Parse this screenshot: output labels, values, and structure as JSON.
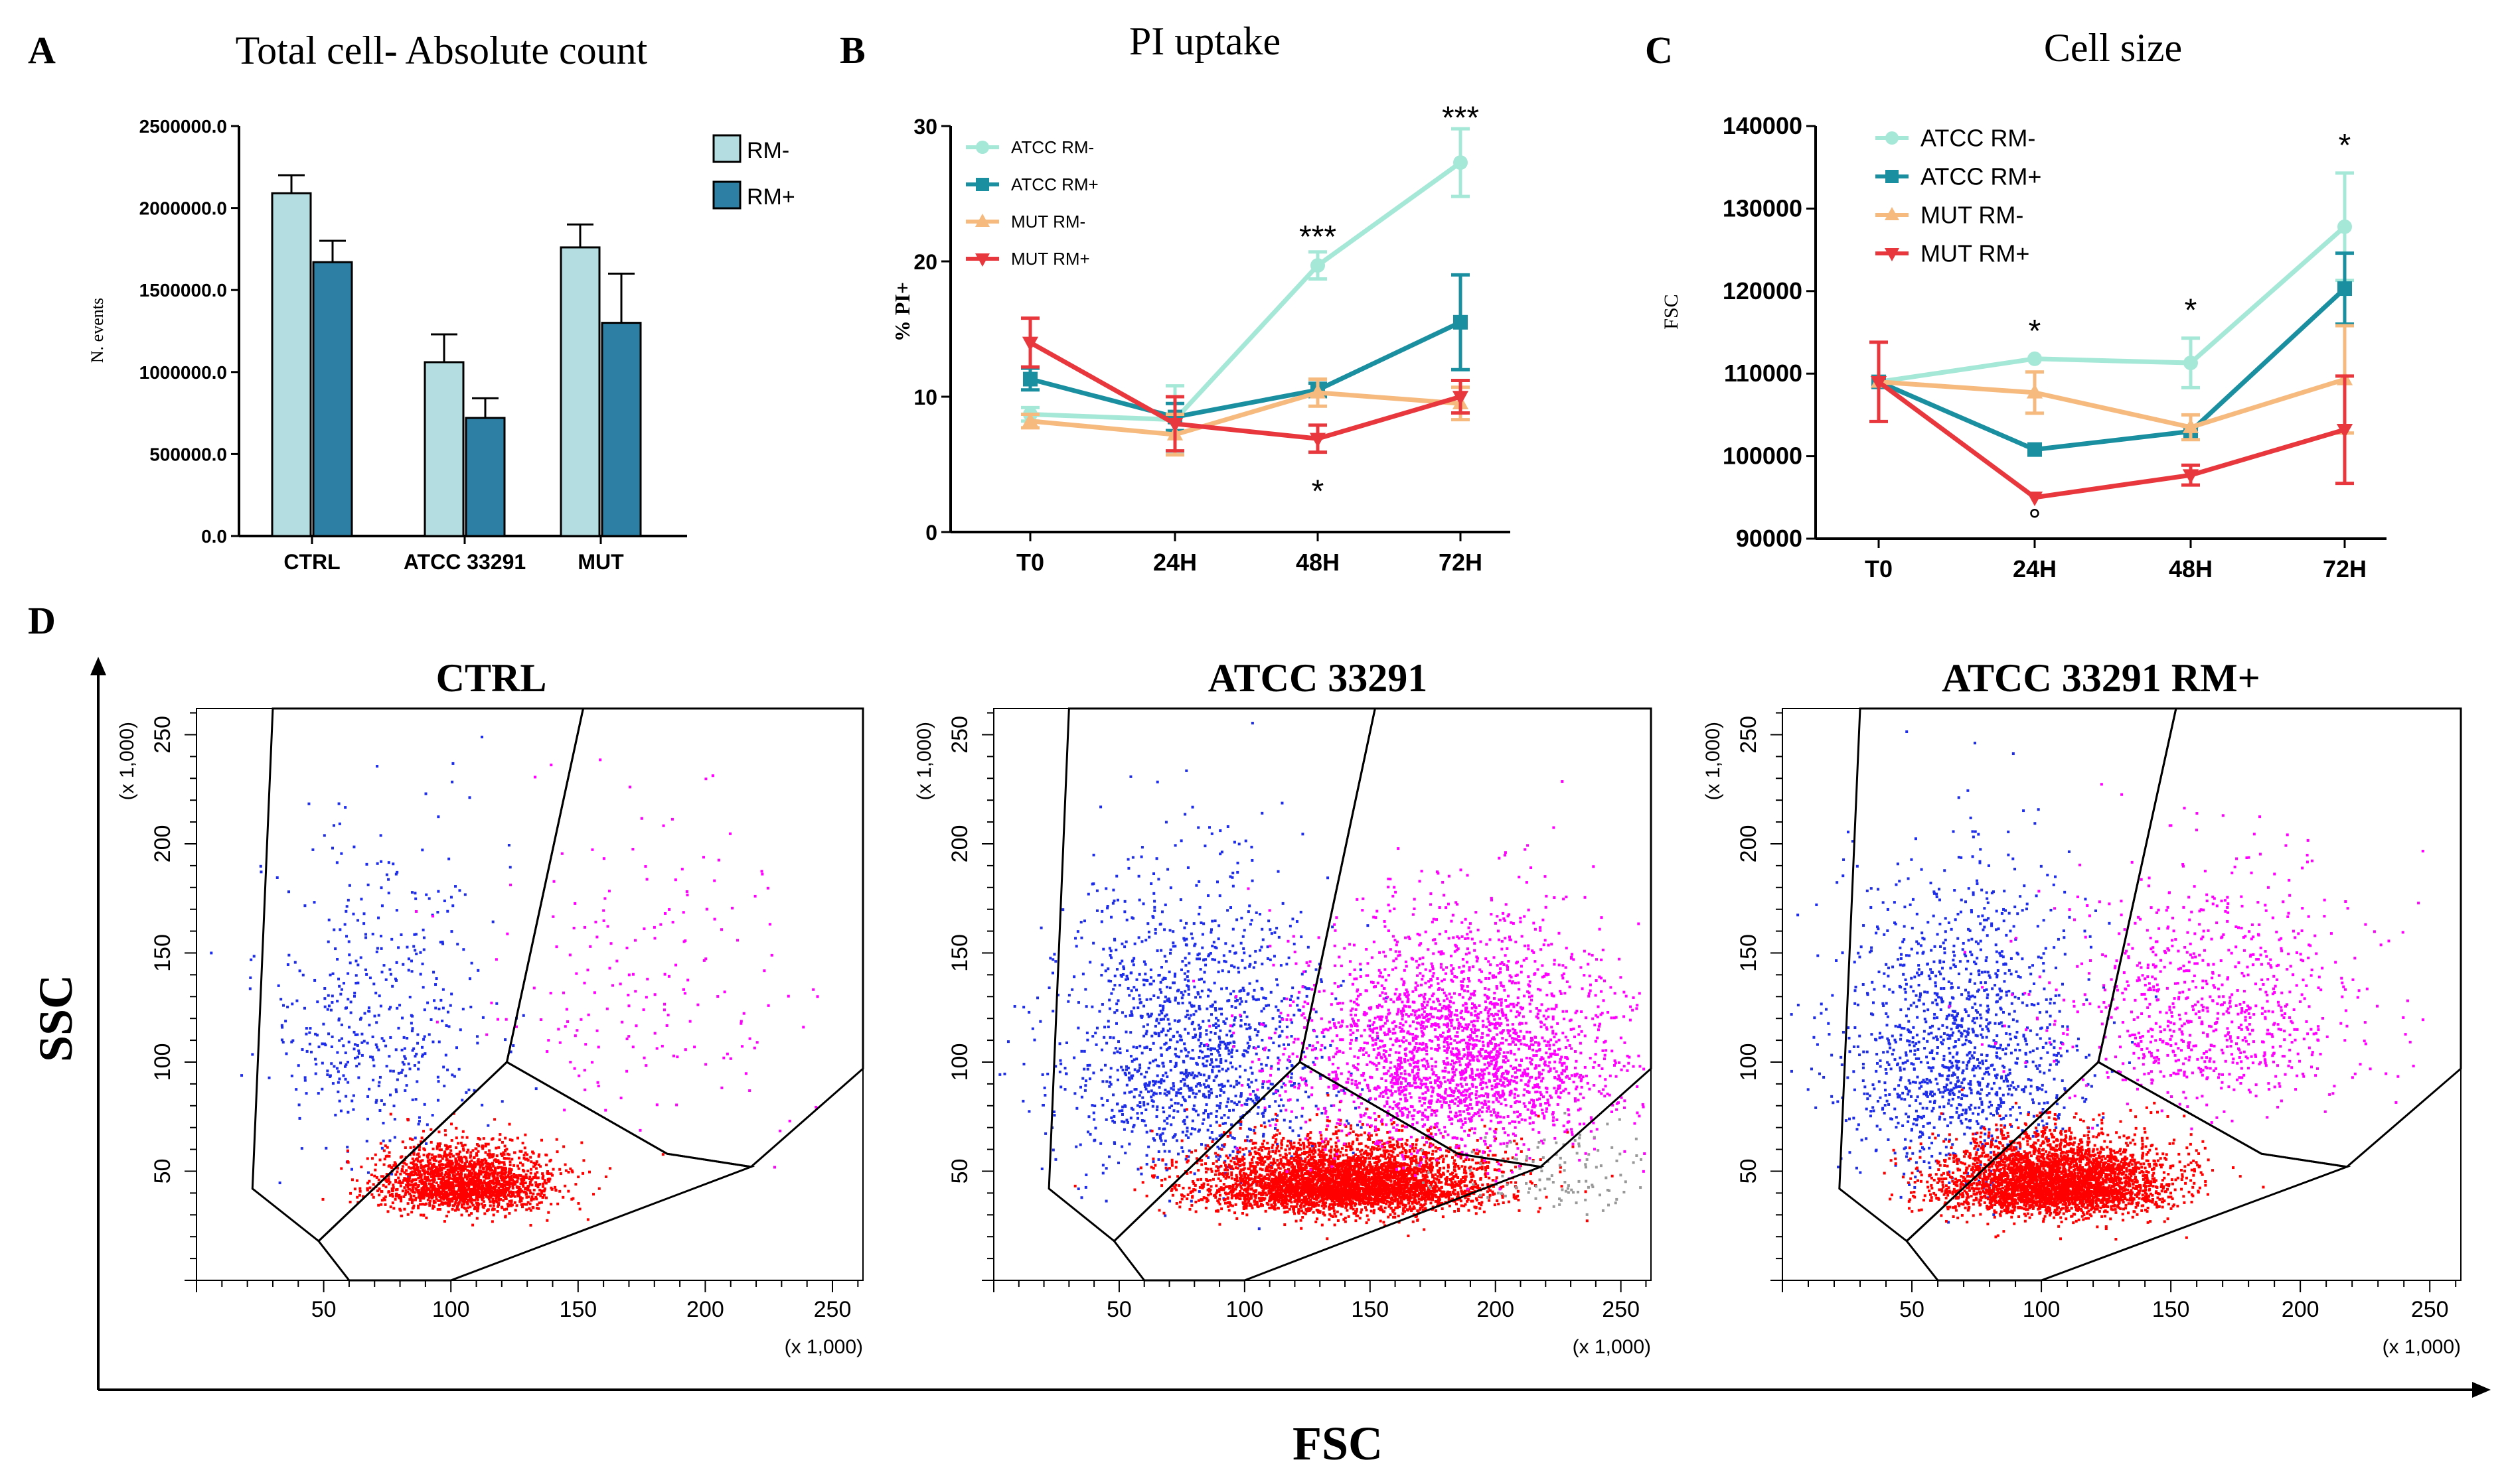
{
  "figure": {
    "panel_letters": [
      "A",
      "B",
      "C",
      "D"
    ],
    "d_ylabel": "SSC",
    "d_xlabel": "FSC"
  },
  "chart_data": [
    {
      "id": "A",
      "type": "bar",
      "title": "Total cell- Absolute count",
      "ylabel": "N. events",
      "xlabel": "",
      "ylim": [
        0,
        2500000
      ],
      "yticks": [
        "0.0",
        "500000.0",
        "1000000.0",
        "1500000.0",
        "2000000.0",
        "2500000.0"
      ],
      "categories": [
        "CTRL",
        "ATCC 33291",
        "MUT"
      ],
      "series": [
        {
          "name": "RM-",
          "color": "#b3dde0",
          "values": [
            2090000,
            1060000,
            1760000
          ],
          "errors": [
            110000,
            170000,
            140000
          ]
        },
        {
          "name": "RM+",
          "color": "#2e7fa4",
          "values": [
            1670000,
            720000,
            1300000
          ],
          "errors": [
            130000,
            120000,
            300000
          ]
        }
      ]
    },
    {
      "id": "B",
      "type": "line",
      "title": "PI uptake",
      "ylabel": "% PI+",
      "xlabel": "",
      "ylim": [
        0,
        30
      ],
      "yticks": [
        "0",
        "10",
        "20",
        "30"
      ],
      "categories": [
        "T0",
        "24H",
        "48H",
        "72H"
      ],
      "series": [
        {
          "name": "ATCC RM-",
          "color": "#a5e8d7",
          "marker": "circle",
          "values": [
            8.7,
            8.3,
            19.7,
            27.3
          ],
          "errors": [
            0.5,
            2.5,
            1.0,
            2.5
          ]
        },
        {
          "name": "ATCC RM+",
          "color": "#1a8fa0",
          "marker": "square",
          "values": [
            11.3,
            8.5,
            10.5,
            15.5
          ],
          "errors": [
            0.8,
            1.0,
            0.5,
            3.5
          ]
        },
        {
          "name": "MUT RM-",
          "color": "#f6b97e",
          "marker": "triangle",
          "values": [
            8.2,
            7.2,
            10.3,
            9.5
          ],
          "errors": [
            0.5,
            1.5,
            1.0,
            1.2
          ]
        },
        {
          "name": "MUT RM+",
          "color": "#e8373d",
          "marker": "triangle-down",
          "values": [
            14.0,
            8.0,
            6.9,
            10.0
          ],
          "errors": [
            1.8,
            2.0,
            1.0,
            1.2
          ]
        }
      ],
      "annotations": [
        {
          "text": "***",
          "category": "48H",
          "y": 22.0
        },
        {
          "text": "***",
          "category": "72H",
          "y": 30.8
        },
        {
          "text": "*",
          "category": "48H",
          "y": 3.2
        }
      ]
    },
    {
      "id": "C",
      "type": "line",
      "title": "Cell size",
      "ylabel": "FSC",
      "xlabel": "",
      "ylim": [
        90000,
        140000
      ],
      "yticks": [
        "90000",
        "100000",
        "110000",
        "120000",
        "130000",
        "140000"
      ],
      "categories": [
        "T0",
        "24H",
        "48H",
        "72H"
      ],
      "series": [
        {
          "name": "ATCC RM-",
          "color": "#a5e8d7",
          "marker": "circle",
          "values": [
            109000,
            111800,
            111300,
            127800
          ],
          "errors": [
            0,
            0,
            3000,
            6500
          ]
        },
        {
          "name": "ATCC RM+",
          "color": "#1a8fa0",
          "marker": "square",
          "values": [
            109000,
            100800,
            103000,
            120300
          ],
          "errors": [
            0,
            0,
            0,
            4300
          ]
        },
        {
          "name": "MUT RM-",
          "color": "#f6b97e",
          "marker": "triangle",
          "values": [
            109000,
            107700,
            103500,
            109300
          ],
          "errors": [
            0,
            2500,
            1500,
            6500
          ]
        },
        {
          "name": "MUT RM+",
          "color": "#e8373d",
          "marker": "triangle-down",
          "values": [
            109000,
            95000,
            97700,
            103200
          ],
          "errors": [
            4800,
            0,
            1200,
            6500
          ]
        }
      ],
      "annotations": [
        {
          "text": "*",
          "category": "24H",
          "y": 115500
        },
        {
          "text": "*",
          "category": "48H",
          "y": 118000
        },
        {
          "text": "*",
          "category": "72H",
          "y": 138000
        },
        {
          "text": "°",
          "category": "24H",
          "y": 92500
        }
      ]
    },
    {
      "id": "D1",
      "type": "scatter",
      "title": "CTRL",
      "xlabel": "(x 1,000)",
      "ylabel": "(x 1,000)",
      "xlim": [
        0,
        262
      ],
      "ylim": [
        0,
        262
      ],
      "xticks": [
        50,
        100,
        150,
        200,
        250
      ],
      "yticks": [
        50,
        100,
        150,
        200,
        250
      ],
      "gates": [
        [
          [
            22,
            42
          ],
          [
            30,
            262
          ],
          [
            152,
            262
          ],
          [
            122,
            100
          ],
          [
            48,
            18
          ]
        ],
        [
          [
            48,
            18
          ],
          [
            122,
            100
          ],
          [
            185,
            58
          ],
          [
            218,
            52
          ],
          [
            100,
            0
          ],
          [
            60,
            0
          ]
        ],
        [
          [
            152,
            262
          ],
          [
            262,
            262
          ],
          [
            262,
            97
          ],
          [
            218,
            52
          ],
          [
            185,
            58
          ],
          [
            122,
            100
          ]
        ]
      ],
      "populations": [
        {
          "name": "blue",
          "color": "#1e2ee8",
          "count": 450,
          "mx": 72,
          "my": 110,
          "sx": 22,
          "sy": 45
        },
        {
          "name": "red",
          "color": "#ff0000",
          "count": 1900,
          "mx": 105,
          "my": 42,
          "sx": 17,
          "sy": 11
        },
        {
          "name": "magenta",
          "color": "#ff00ff",
          "count": 180,
          "mx": 175,
          "my": 120,
          "sx": 30,
          "sy": 45
        }
      ]
    },
    {
      "id": "D2",
      "type": "scatter",
      "title": "ATCC 33291",
      "xlabel": "(x 1,000)",
      "ylabel": "(x 1,000)",
      "xlim": [
        0,
        262
      ],
      "ylim": [
        0,
        262
      ],
      "xticks": [
        50,
        100,
        150,
        200,
        250
      ],
      "yticks": [
        50,
        100,
        150,
        200,
        250
      ],
      "gates": [
        [
          [
            22,
            42
          ],
          [
            30,
            262
          ],
          [
            152,
            262
          ],
          [
            122,
            100
          ],
          [
            48,
            18
          ]
        ],
        [
          [
            48,
            18
          ],
          [
            122,
            100
          ],
          [
            185,
            58
          ],
          [
            218,
            52
          ],
          [
            100,
            0
          ],
          [
            60,
            0
          ]
        ],
        [
          [
            152,
            262
          ],
          [
            262,
            262
          ],
          [
            262,
            97
          ],
          [
            218,
            52
          ],
          [
            185,
            58
          ],
          [
            122,
            100
          ]
        ]
      ],
      "populations": [
        {
          "name": "blue",
          "color": "#1e2ee8",
          "count": 1400,
          "mx": 78,
          "my": 95,
          "sx": 26,
          "sy": 45
        },
        {
          "name": "red",
          "color": "#ff0000",
          "count": 4200,
          "mx": 140,
          "my": 42,
          "sx": 28,
          "sy": 12
        },
        {
          "name": "magenta",
          "color": "#ff00ff",
          "count": 2600,
          "mx": 185,
          "my": 95,
          "sx": 32,
          "sy": 35
        },
        {
          "name": "grey",
          "color": "#999999",
          "count": 120,
          "mx": 225,
          "my": 45,
          "sx": 25,
          "sy": 12
        }
      ]
    },
    {
      "id": "D3",
      "type": "scatter",
      "title": "ATCC 33291 RM+",
      "xlabel": "(x 1,000)",
      "ylabel": "(x 1,000)",
      "xlim": [
        0,
        262
      ],
      "ylim": [
        0,
        262
      ],
      "xticks": [
        50,
        100,
        150,
        200,
        250
      ],
      "yticks": [
        50,
        100,
        150,
        200,
        250
      ],
      "gates": [
        [
          [
            22,
            42
          ],
          [
            30,
            262
          ],
          [
            152,
            262
          ],
          [
            122,
            100
          ],
          [
            48,
            18
          ]
        ],
        [
          [
            48,
            18
          ],
          [
            122,
            100
          ],
          [
            185,
            58
          ],
          [
            218,
            52
          ],
          [
            100,
            0
          ],
          [
            60,
            0
          ]
        ],
        [
          [
            152,
            262
          ],
          [
            262,
            262
          ],
          [
            262,
            97
          ],
          [
            218,
            52
          ],
          [
            185,
            58
          ],
          [
            122,
            100
          ]
        ]
      ],
      "populations": [
        {
          "name": "blue",
          "color": "#1e2ee8",
          "count": 1300,
          "mx": 68,
          "my": 95,
          "sx": 22,
          "sy": 45
        },
        {
          "name": "red",
          "color": "#ff0000",
          "count": 3600,
          "mx": 105,
          "my": 42,
          "sx": 22,
          "sy": 13
        },
        {
          "name": "magenta",
          "color": "#ff00ff",
          "count": 850,
          "mx": 165,
          "my": 115,
          "sx": 30,
          "sy": 35
        }
      ]
    }
  ]
}
